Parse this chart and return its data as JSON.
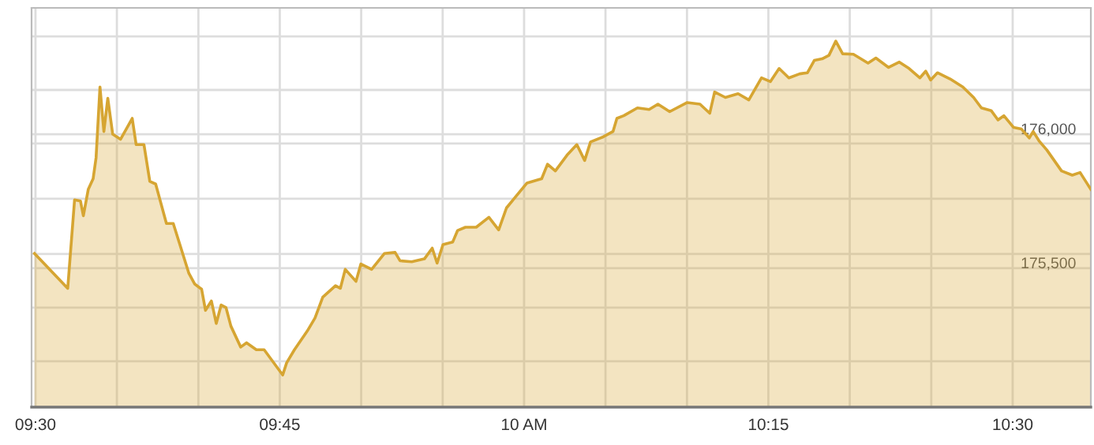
{
  "chart_data": {
    "type": "area",
    "xlim": [
      9.496,
      10.58
    ],
    "ylim": [
      174982,
      176471
    ],
    "xticks": [
      {
        "value": 9.5,
        "label": "09:30"
      },
      {
        "value": 9.5833,
        "label": null
      },
      {
        "value": 9.6667,
        "label": null
      },
      {
        "value": 9.75,
        "label": "09:45"
      },
      {
        "value": 9.8333,
        "label": null
      },
      {
        "value": 9.9167,
        "label": null
      },
      {
        "value": 10,
        "label": "10 AM"
      },
      {
        "value": 10.0833,
        "label": null
      },
      {
        "value": 10.1667,
        "label": null
      },
      {
        "value": 10.25,
        "label": "10:15"
      },
      {
        "value": 10.3333,
        "label": null
      },
      {
        "value": 10.4167,
        "label": null
      },
      {
        "value": 10.5,
        "label": "10:30"
      }
    ],
    "yticks": [
      {
        "value": 175153,
        "label": null
      },
      {
        "value": 175353,
        "label": null
      },
      {
        "value": 175500,
        "label": "175,500"
      },
      {
        "value": 175553,
        "label": null
      },
      {
        "value": 175759,
        "label": null
      },
      {
        "value": 175965,
        "label": null
      },
      {
        "value": 176000,
        "label": "176,000"
      },
      {
        "value": 176165,
        "label": null
      },
      {
        "value": 176365,
        "label": null
      }
    ],
    "grid": true,
    "legend": false,
    "series": [
      {
        "color": "#d6a532",
        "x": [
          9.499,
          9.533,
          9.54,
          9.546,
          9.549,
          9.554,
          9.559,
          9.562,
          9.566,
          9.57,
          9.574,
          9.579,
          9.587,
          9.599,
          9.603,
          9.611,
          9.617,
          9.623,
          9.634,
          9.641,
          9.657,
          9.663,
          9.67,
          9.674,
          9.68,
          9.685,
          9.69,
          9.695,
          9.7,
          9.71,
          9.716,
          9.726,
          9.734,
          9.753,
          9.757,
          9.765,
          9.778,
          9.786,
          9.794,
          9.807,
          9.812,
          9.817,
          9.828,
          9.833,
          9.844,
          9.857,
          9.868,
          9.873,
          9.885,
          9.898,
          9.906,
          9.911,
          9.917,
          9.927,
          9.932,
          9.94,
          9.951,
          9.964,
          9.974,
          9.982,
          9.991,
          10.003,
          10.018,
          10.024,
          10.032,
          10.044,
          10.054,
          10.062,
          10.068,
          10.081,
          10.091,
          10.095,
          10.102,
          10.116,
          10.128,
          10.137,
          10.149,
          10.167,
          10.18,
          10.19,
          10.195,
          10.206,
          10.219,
          10.23,
          10.243,
          10.252,
          10.261,
          10.271,
          10.282,
          10.29,
          10.297,
          10.305,
          10.312,
          10.319,
          10.326,
          10.337,
          10.352,
          10.36,
          10.373,
          10.384,
          10.394,
          10.405,
          10.411,
          10.416,
          10.423,
          10.436,
          10.449,
          10.46,
          10.468,
          10.478,
          10.485,
          10.491,
          10.501,
          10.509,
          10.517,
          10.521,
          10.527,
          10.535,
          10.55,
          10.561,
          10.569,
          10.58
        ],
        "values": [
          175555,
          175425,
          175755,
          175751,
          175696,
          175794,
          175834,
          175912,
          176176,
          176010,
          176134,
          176000,
          175981,
          176059,
          175961,
          175961,
          175824,
          175814,
          175667,
          175667,
          175481,
          175441,
          175422,
          175343,
          175378,
          175294,
          175363,
          175353,
          175284,
          175206,
          175222,
          175196,
          175196,
          175102,
          175147,
          175196,
          175265,
          175314,
          175392,
          175435,
          175425,
          175496,
          175451,
          175516,
          175496,
          175555,
          175559,
          175528,
          175524,
          175535,
          175575,
          175519,
          175588,
          175598,
          175641,
          175653,
          175653,
          175690,
          175643,
          175725,
          175765,
          175818,
          175834,
          175888,
          175863,
          175922,
          175961,
          175902,
          175971,
          175990,
          176010,
          176059,
          176069,
          176098,
          176092,
          176112,
          176084,
          176118,
          176112,
          176078,
          176157,
          176137,
          176151,
          176128,
          176210,
          176196,
          176245,
          176210,
          176225,
          176229,
          176275,
          176281,
          176294,
          176347,
          176300,
          176298,
          176265,
          176284,
          176249,
          176269,
          176245,
          176210,
          176235,
          176202,
          176229,
          176206,
          176176,
          176137,
          176098,
          176088,
          176053,
          176069,
          176025,
          176019,
          175986,
          176010,
          175975,
          175941,
          175863,
          175847,
          175857,
          175794
        ]
      }
    ]
  }
}
